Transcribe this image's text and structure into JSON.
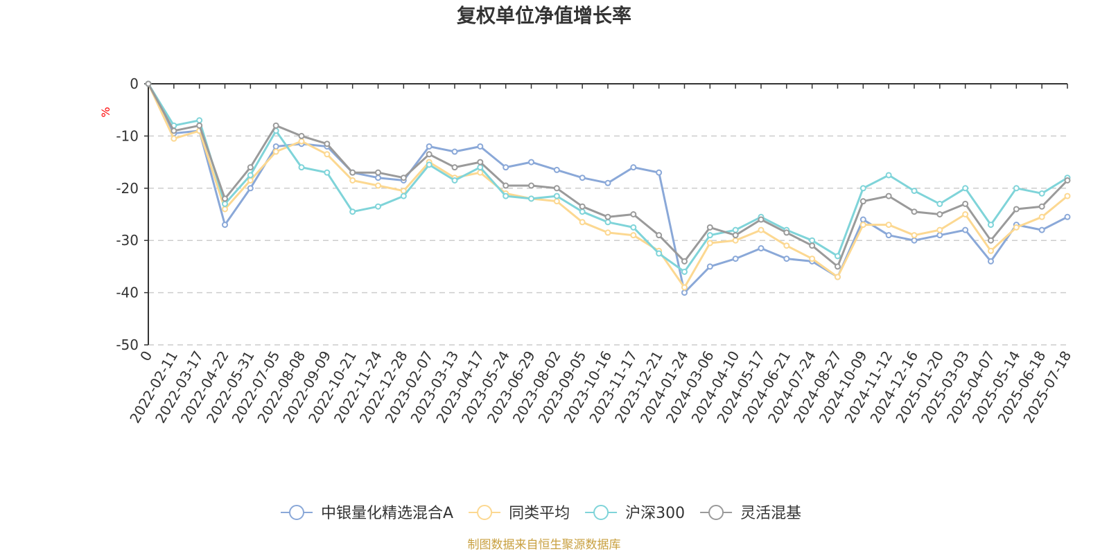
{
  "chart_data": {
    "type": "line",
    "title": "复权单位净值增长率",
    "ylabel": "%",
    "ylim": [
      -50,
      0
    ],
    "yticks": [
      0,
      -10,
      -20,
      -30,
      -40,
      -50
    ],
    "grid": true,
    "legend_position": "bottom",
    "x_tick_labels": [
      "0",
      "2022-02-11",
      "2022-03-17",
      "2022-04-22",
      "2022-05-31",
      "2022-07-05",
      "2022-08-08",
      "2022-09-09",
      "2022-10-21",
      "2022-11-24",
      "2022-12-28",
      "2023-02-07",
      "2023-03-13",
      "2023-04-17",
      "2023-05-24",
      "2023-06-29",
      "2023-08-02",
      "2023-09-05",
      "2023-10-16",
      "2023-11-17",
      "2023-12-21",
      "2024-01-24",
      "2024-03-06",
      "2024-04-10",
      "2024-05-17",
      "2024-06-21",
      "2024-07-24",
      "2024-08-27",
      "2024-10-09",
      "2024-11-12",
      "2024-12-16",
      "2025-01-20",
      "2025-03-03",
      "2025-04-07",
      "2025-05-14",
      "2025-06-18",
      "2025-07-18"
    ],
    "series": [
      {
        "name": "中银量化精选混合A",
        "color": "#8aa8d8",
        "values": [
          0,
          -9.5,
          -9,
          -27,
          -20,
          -12,
          -11.5,
          -12,
          -17,
          -18,
          -18.5,
          -12,
          -13,
          -12,
          -16,
          -15,
          -16.5,
          -18,
          -19,
          -16,
          -17,
          -40,
          -35,
          -33.5,
          -31.5,
          -33.5,
          -34,
          -37,
          -26,
          -29,
          -30,
          -29,
          -28,
          -34,
          -27,
          -28,
          -25.5
        ]
      },
      {
        "name": "同类平均",
        "color": "#fcd891",
        "values": [
          0,
          -10.5,
          -9,
          -24,
          -18.5,
          -13,
          -11,
          -13.5,
          -18.5,
          -19.5,
          -20.5,
          -15,
          -18,
          -17,
          -21,
          -22,
          -22.5,
          -26.5,
          -28.5,
          -29,
          -32,
          -39,
          -30.5,
          -30,
          -28,
          -31,
          -33.5,
          -37,
          -27,
          -27,
          -29,
          -28,
          -25,
          -32,
          -27.5,
          -25.5,
          -21.5
        ]
      },
      {
        "name": "沪深300",
        "color": "#7fd4d9",
        "values": [
          0,
          -8,
          -7,
          -23,
          -17.5,
          -9,
          -16,
          -17,
          -24.5,
          -23.5,
          -21.5,
          -15.5,
          -18.5,
          -16,
          -21.5,
          -22,
          -21.5,
          -24.5,
          -26.5,
          -27.5,
          -32.5,
          -36,
          -29,
          -28,
          -25.5,
          -28,
          -30,
          -33,
          -20,
          -17.5,
          -20.5,
          -23,
          -20,
          -27,
          -20,
          -21,
          -18
        ]
      },
      {
        "name": "灵活混基",
        "color": "#9a9a9a",
        "values": [
          0,
          -9,
          -8,
          -22,
          -16,
          -8,
          -10,
          -11.5,
          -17,
          -17,
          -18,
          -13.5,
          -16,
          -15,
          -19.5,
          -19.5,
          -20,
          -23.5,
          -25.5,
          -25,
          -29,
          -34,
          -27.5,
          -29,
          -26,
          -28.5,
          -31,
          -35,
          -22.5,
          -21.5,
          -24.5,
          -25,
          -23,
          -30,
          -24,
          -23.5,
          -18.5
        ]
      }
    ]
  },
  "legend_labels": [
    "中银量化精选混合A",
    "同类平均",
    "沪深300",
    "灵活混基"
  ],
  "footer": {
    "source": "制图数据来自恒生聚源数据库"
  }
}
